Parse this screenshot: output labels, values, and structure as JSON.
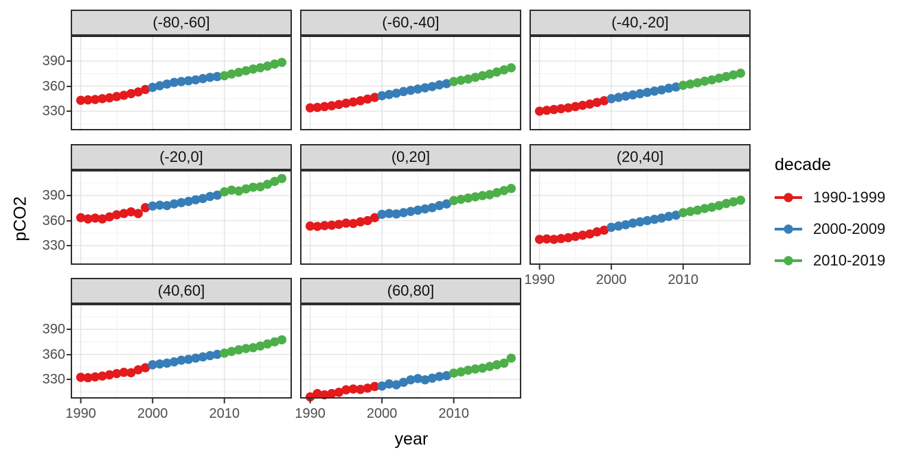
{
  "chart_data": {
    "type": "scatter",
    "title": "",
    "xlabel": "year",
    "ylabel": "pCO2",
    "legend_title": "decade",
    "x_start": 1990,
    "x_end": 2018,
    "x_ticks": [
      1990,
      2000,
      2010
    ],
    "y_ticks": [
      330,
      360,
      390
    ],
    "x_minor": [
      1995,
      2005,
      2015
    ],
    "y_minor": [
      315,
      345,
      375,
      405
    ],
    "xlim": [
      1988.6,
      2019.4
    ],
    "ylim": [
      307,
      420.5
    ],
    "grid": true,
    "legend_position": "right",
    "series": [
      {
        "name": "1990-1999",
        "color": "#E41A1C",
        "year_from": 1990,
        "year_to": 1999
      },
      {
        "name": "2000-2009",
        "color": "#377EB8",
        "year_from": 2000,
        "year_to": 2009
      },
      {
        "name": "2010-2019",
        "color": "#4DAF4A",
        "year_from": 2010,
        "year_to": 2019
      }
    ],
    "facets": [
      {
        "label": "(-80,-60]",
        "values": [
          343,
          343.5,
          344,
          345,
          346,
          347.5,
          349,
          351,
          353,
          356,
          358.5,
          360.5,
          362.5,
          364.5,
          365.5,
          366.5,
          367.5,
          369,
          370.5,
          371.5,
          372.5,
          374.5,
          376.5,
          378.5,
          380.5,
          382,
          384,
          386.5,
          388.5
        ]
      },
      {
        "label": "(-60,-40]",
        "values": [
          334,
          334.5,
          335.5,
          336.5,
          338,
          339.5,
          341,
          342.5,
          344.5,
          346.5,
          348.5,
          350,
          351.5,
          353.5,
          355,
          356.5,
          358,
          359.5,
          361.5,
          363,
          365.5,
          367,
          368.5,
          370.5,
          372.5,
          374.5,
          377,
          379.5,
          382
        ]
      },
      {
        "label": "(-40,-20]",
        "values": [
          330,
          331,
          332,
          333,
          334,
          335.5,
          337,
          338.5,
          340.5,
          342.5,
          345,
          346.5,
          348,
          349.5,
          351,
          352.5,
          354,
          355.5,
          357.5,
          359,
          361,
          362.5,
          364,
          366,
          367.5,
          369.5,
          371.5,
          373.5,
          375.5
        ]
      },
      {
        "label": "(-20,0]",
        "values": [
          363.5,
          362,
          363,
          362,
          364.5,
          367,
          368.5,
          370.5,
          368.5,
          375.5,
          377.5,
          378.5,
          378,
          380,
          381.5,
          383,
          385,
          386.5,
          389,
          390.5,
          394.5,
          396.5,
          395.5,
          398,
          400,
          400.5,
          403.5,
          407,
          410.5
        ]
      },
      {
        "label": "(0,20]",
        "values": [
          353.5,
          353,
          354,
          354.5,
          355.5,
          357,
          356.5,
          358.5,
          360,
          363.5,
          367.5,
          368.5,
          368,
          369.5,
          371,
          372.5,
          374,
          375.5,
          378,
          380,
          384,
          385.5,
          387,
          388.5,
          390,
          391,
          393.5,
          396,
          398.5
        ]
      },
      {
        "label": "(20,40]",
        "values": [
          337.5,
          338,
          337.5,
          338.5,
          339.5,
          341,
          342.5,
          344,
          346.5,
          348.5,
          352,
          353.5,
          355,
          357,
          358.5,
          360,
          361.5,
          363,
          365,
          366.5,
          369.5,
          371,
          372.5,
          374.5,
          376,
          378,
          380.5,
          382.5,
          384.5
        ]
      },
      {
        "label": "(40,60]",
        "values": [
          332.5,
          332,
          333,
          334,
          335.5,
          337,
          338.5,
          338,
          341.5,
          344,
          347.5,
          348.5,
          349.5,
          351,
          353,
          354,
          355.5,
          357,
          358.5,
          360,
          361.5,
          363.5,
          365.5,
          367,
          368,
          370,
          372.5,
          375,
          377.5
        ]
      },
      {
        "label": "(60,80]",
        "values": [
          309,
          313,
          311.5,
          313,
          314.5,
          317.5,
          318.5,
          318,
          319.5,
          321.5,
          322,
          324.5,
          323.5,
          326.5,
          329.5,
          331,
          329.5,
          331.5,
          333.5,
          334.5,
          337.5,
          339,
          341,
          342.5,
          343.5,
          345.5,
          347.5,
          349.5,
          355.5
        ]
      }
    ],
    "style": {
      "strip_bg": "#d9d9d9",
      "panel_border": "#2d2d2d",
      "grid_major": "#e3e3e3",
      "grid_minor": "#f1f1f1",
      "tick_text": "#4d4d4d"
    }
  }
}
